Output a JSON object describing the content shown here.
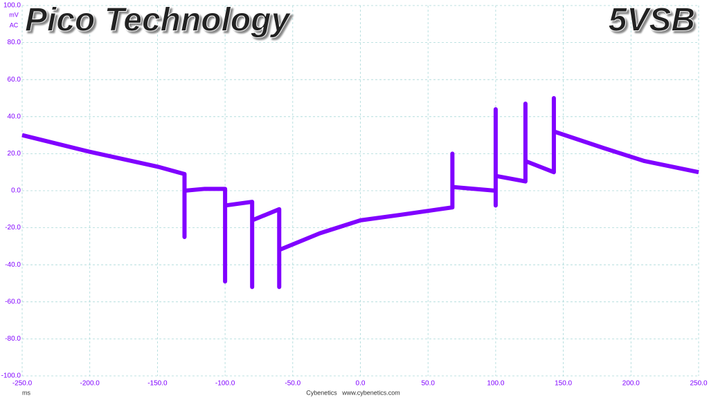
{
  "chart_data": {
    "type": "line",
    "title": "Pico Technology",
    "channel": "5VSB",
    "y_unit": "mV",
    "coupling": "AC",
    "x_unit": "ms",
    "footer": "Cybenetics   www.cybenetics.com",
    "grid": true,
    "xlim": [
      -250,
      250
    ],
    "xticks": [
      {
        "value": -250,
        "label": "-250.0"
      },
      {
        "value": -200,
        "label": "-200.0"
      },
      {
        "value": -150,
        "label": "-150.0"
      },
      {
        "value": -100,
        "label": "-100.0"
      },
      {
        "value": -50,
        "label": "-50.0"
      },
      {
        "value": 0,
        "label": "0.0"
      },
      {
        "value": 50,
        "label": "50.0"
      },
      {
        "value": 100,
        "label": "100.0"
      },
      {
        "value": 150,
        "label": "150.0"
      },
      {
        "value": 200,
        "label": "200.0"
      },
      {
        "value": 250,
        "label": "250.0"
      }
    ],
    "ylim": [
      -100,
      100
    ],
    "yticks": [
      {
        "value": -100,
        "label": "-100.0"
      },
      {
        "value": -80,
        "label": "-80.0"
      },
      {
        "value": -60,
        "label": "-60.0"
      },
      {
        "value": -40,
        "label": "-40.0"
      },
      {
        "value": -20,
        "label": "-20.0"
      },
      {
        "value": 0,
        "label": "0.0"
      },
      {
        "value": 20,
        "label": "20.0"
      },
      {
        "value": 40,
        "label": "40.0"
      },
      {
        "value": 60,
        "label": "60.0"
      },
      {
        "value": 80,
        "label": "80.0"
      },
      {
        "value": 100,
        "label": "100.0"
      }
    ],
    "x": [
      -250,
      -200,
      -150,
      -130,
      -130,
      -130,
      -115,
      -100,
      -100,
      -100,
      -80,
      -80,
      -80,
      -60,
      -60,
      -60,
      -30,
      0,
      30,
      68,
      68,
      68,
      100,
      100,
      100,
      100,
      122,
      122,
      122,
      143,
      143,
      143,
      180,
      210,
      250
    ],
    "series": [
      {
        "color": "#8000ff",
        "values": [
          30,
          21,
          13,
          9,
          -25,
          0,
          1,
          1,
          -49,
          -8,
          -6,
          -52,
          -16,
          -10,
          -52,
          -32,
          -23,
          -16,
          -13,
          -9,
          20,
          2,
          0,
          44,
          -8,
          8,
          5,
          47,
          16,
          10,
          50,
          32,
          23,
          16,
          10
        ]
      }
    ]
  }
}
